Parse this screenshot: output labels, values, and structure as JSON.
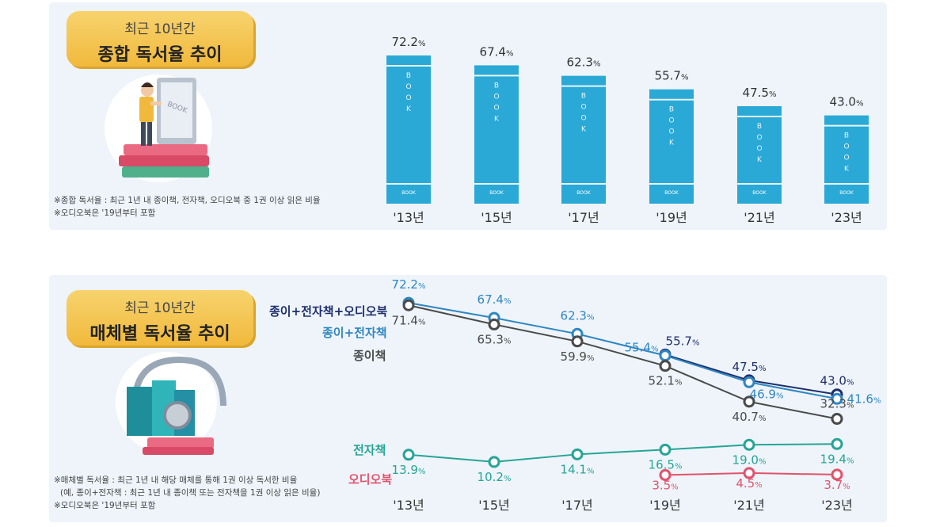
{
  "panel1": {
    "title_small": "최근 10년간",
    "title_main": "종합 독서율 추이",
    "notes": [
      "※종합 독서율 : 최근 1년 내 종이책, 전자책, 오디오북 중 1권 이상 읽은 비율",
      "※오디오북은 '19년부터 포함"
    ],
    "illustration_text": "BOOK"
  },
  "panel2": {
    "title_small": "최근 10년간",
    "title_main": "매체별 독서율 추이",
    "notes": [
      "※매체별 독서율 : 최근 1년 내 해당 매체를 통해 1권 이상 독서한 비율",
      "(예, 종이+전자책 : 최근 1년 내 종이책 또는 전자책을 1권 이상 읽은 비율)",
      "※오디오북은 '19년부터 포함"
    ]
  },
  "colors": {
    "bar": "#2ba9d6",
    "bar_band": "#e6f6fc",
    "all": "#1f2f6e",
    "paper_ebook": "#2f86c2",
    "paper": "#4a4a4a",
    "ebook": "#26a596",
    "audio": "#e2536b"
  },
  "chart_data": [
    {
      "type": "bar",
      "title": "종합 독서율 추이",
      "categories": [
        "'13년",
        "'15년",
        "'17년",
        "'19년",
        "'21년",
        "'23년"
      ],
      "values": [
        72.2,
        67.4,
        62.3,
        55.7,
        47.5,
        43.0
      ],
      "labels": [
        "72.2",
        "67.4",
        "62.3",
        "55.7",
        "47.5",
        "43.0"
      ],
      "unit": "%",
      "bar_text": "BOOK",
      "ylim": [
        0,
        80
      ]
    },
    {
      "type": "line",
      "title": "매체별 독서율 추이",
      "categories": [
        "'13년",
        "'15년",
        "'17년",
        "'19년",
        "'21년",
        "'23년"
      ],
      "unit": "%",
      "series": [
        {
          "key": "all",
          "name": "종이+전자책+오디오북",
          "values": [
            null,
            null,
            null,
            55.7,
            47.5,
            43.0
          ],
          "labels": [
            null,
            null,
            null,
            "55.7",
            "47.5",
            "43.0"
          ]
        },
        {
          "key": "paper_ebook",
          "name": "종이+전자책",
          "values": [
            72.2,
            67.4,
            62.3,
            55.4,
            46.9,
            41.6
          ],
          "labels": [
            "72.2",
            "67.4",
            "62.3",
            "55.4",
            "46.9",
            "41.6"
          ]
        },
        {
          "key": "paper",
          "name": "종이책",
          "values": [
            71.4,
            65.3,
            59.9,
            52.1,
            40.7,
            32.3
          ],
          "labels": [
            "71.4",
            "65.3",
            "59.9",
            "52.1",
            "40.7",
            "32.3"
          ]
        },
        {
          "key": "ebook",
          "name": "전자책",
          "values": [
            13.9,
            10.2,
            14.1,
            16.5,
            19.0,
            19.4
          ],
          "labels": [
            "13.9",
            "10.2",
            "14.1",
            "16.5",
            "19.0",
            "19.4"
          ]
        },
        {
          "key": "audio",
          "name": "오디오북",
          "values": [
            null,
            null,
            null,
            3.5,
            4.5,
            3.7
          ],
          "labels": [
            null,
            null,
            null,
            "3.5",
            "4.5",
            "3.7"
          ]
        }
      ]
    }
  ]
}
